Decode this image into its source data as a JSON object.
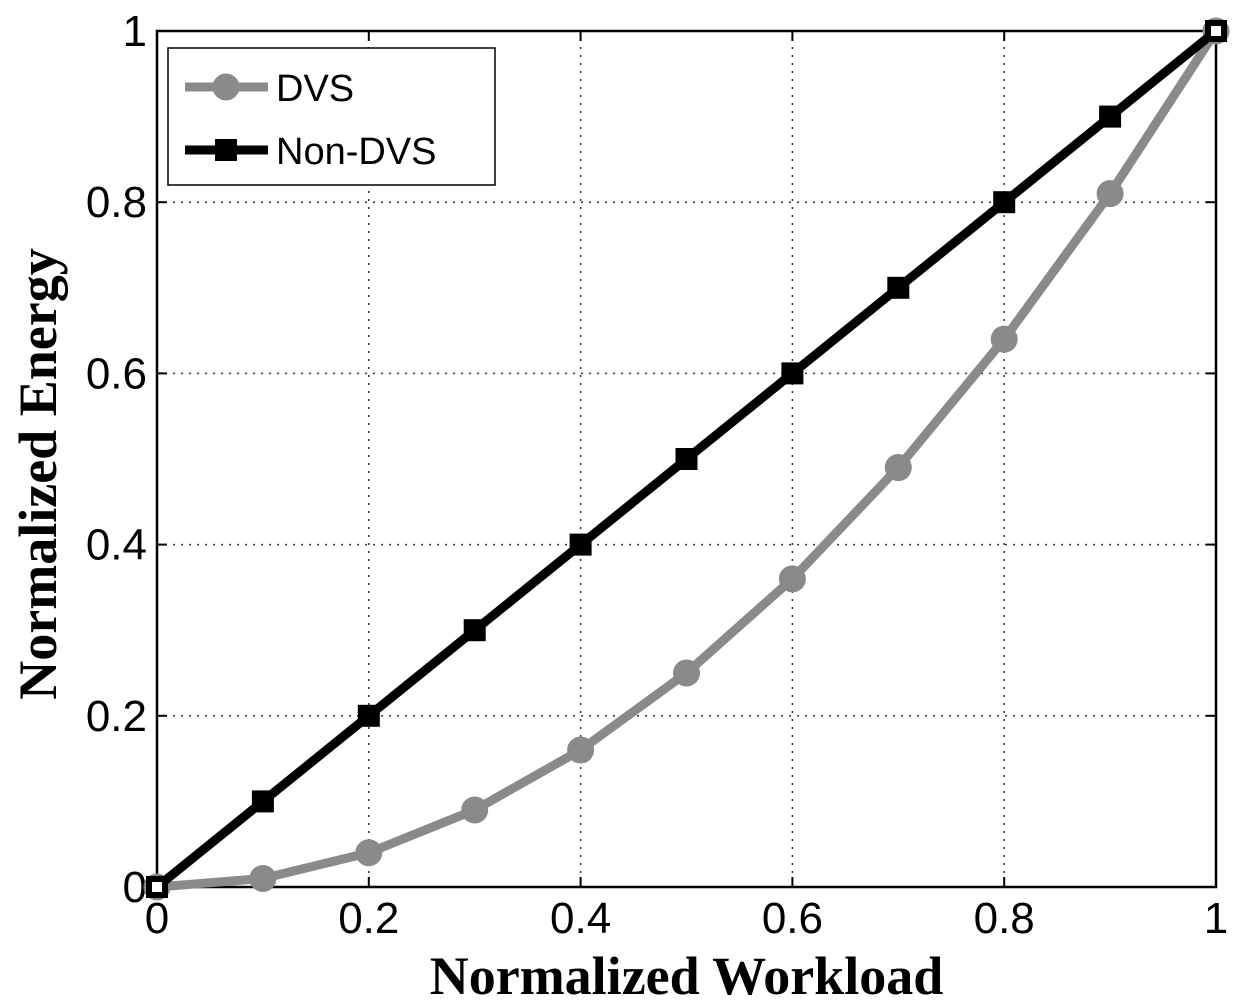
{
  "chart_data": {
    "type": "line",
    "title": "",
    "xlabel": "Normalized Workload",
    "ylabel": "Normalized Energy",
    "xlim": [
      0,
      1
    ],
    "ylim": [
      0,
      1
    ],
    "grid": true,
    "legend_position": "top-left",
    "x_ticks": [
      0,
      0.2,
      0.4,
      0.6,
      0.8,
      1
    ],
    "y_ticks": [
      0,
      0.2,
      0.4,
      0.6,
      0.8,
      1
    ],
    "x_tick_labels": [
      "0",
      "0.2",
      "0.4",
      "0.6",
      "0.8",
      "1"
    ],
    "y_tick_labels": [
      "0",
      "0.2",
      "0.4",
      "0.6",
      "0.8",
      "1"
    ],
    "x": [
      0,
      0.1,
      0.2,
      0.3,
      0.4,
      0.5,
      0.6,
      0.7,
      0.8,
      0.9,
      1.0
    ],
    "series": [
      {
        "name": "DVS",
        "color": "#8a8a8a",
        "marker": "circle",
        "values": [
          0,
          0.01,
          0.04,
          0.09,
          0.16,
          0.25,
          0.36,
          0.49,
          0.64,
          0.81,
          1.0
        ]
      },
      {
        "name": "Non-DVS",
        "color": "#000000",
        "marker": "square",
        "values": [
          0,
          0.1,
          0.2,
          0.3,
          0.4,
          0.5,
          0.6,
          0.7,
          0.8,
          0.9,
          1.0
        ]
      }
    ]
  }
}
